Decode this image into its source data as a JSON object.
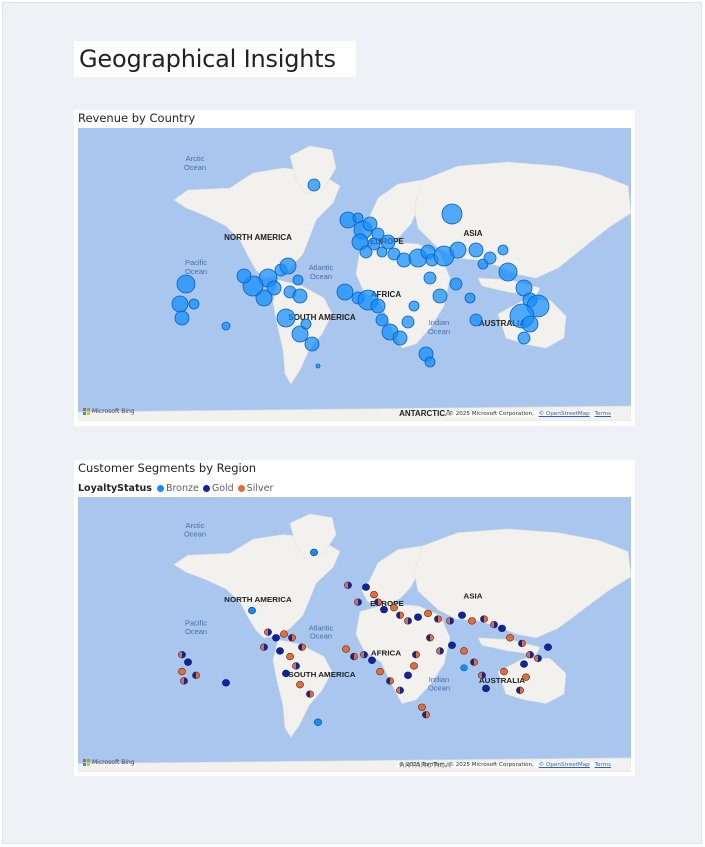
{
  "page": {
    "title": "Geographical Insights"
  },
  "visuals": {
    "revenue": {
      "title": "Revenue by Country",
      "attribution": "© 2025 Microsoft Corporation,",
      "osm_link": "© OpenStreetMap",
      "terms_link": "Terms"
    },
    "segments": {
      "title": "Customer Segments by Region",
      "legend_title": "LoyaltyStatus",
      "legend_items": [
        {
          "label": "Bronze",
          "color": "#118dff"
        },
        {
          "label": "Gold",
          "color": "#12239e"
        },
        {
          "label": "Silver",
          "color": "#e66c37"
        }
      ],
      "attribution": "© 2025 TomTom, © 2025 Microsoft Corporation,",
      "osm_link": "© OpenStreetMap",
      "terms_link": "Terms"
    }
  },
  "map_labels": {
    "north_america": "NORTH AMERICA",
    "south_america": "SOUTH AMERICA",
    "europe": "EUROPE",
    "asia": "ASIA",
    "africa": "AFRICA",
    "australia": "AUSTRALIA",
    "antarctica": "ANTARCTICA",
    "arctic_ocean": "Arctic Ocean",
    "pacific_ocean": "Pacific Ocean",
    "atlantic_ocean": "Atlantic Ocean",
    "indian_ocean": "Indian Ocean",
    "bing_logo": "Microsoft Bing"
  },
  "colors": {
    "bronze": "#118dff",
    "gold": "#12239e",
    "silver": "#e66c37",
    "water": "#a9c6ee",
    "land": "#f2f1ee"
  }
}
